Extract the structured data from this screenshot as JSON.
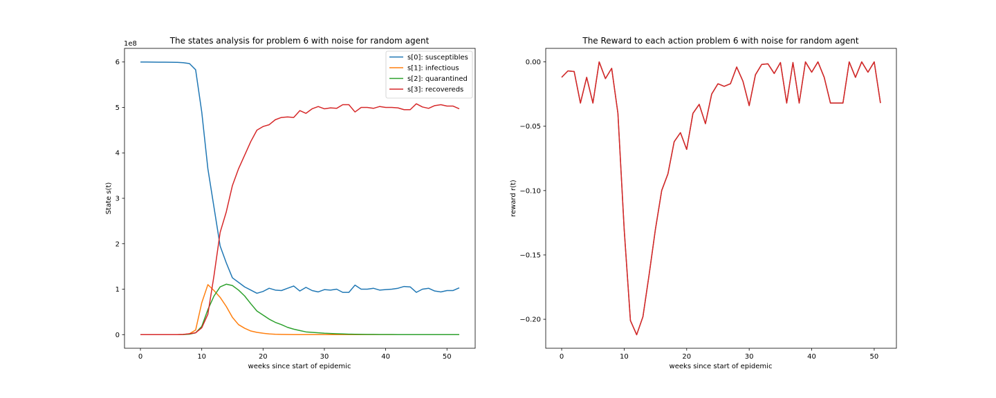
{
  "chart_data": [
    {
      "type": "line",
      "title": "The states analysis for problem 6 with noise for random agent",
      "xlabel": "weeks since start of epidemic",
      "ylabel": "State s(t)",
      "offset_text": "1e8",
      "xlim": [
        -2.6,
        54.6
      ],
      "ylim": [
        -30000000,
        630000000
      ],
      "xticks": [
        0,
        10,
        20,
        30,
        40,
        50
      ],
      "xtick_labels": [
        "0",
        "10",
        "20",
        "30",
        "40",
        "50"
      ],
      "yticks": [
        0,
        100000000,
        200000000,
        300000000,
        400000000,
        500000000,
        600000000
      ],
      "ytick_labels": [
        "0",
        "1",
        "2",
        "3",
        "4",
        "5",
        "6"
      ],
      "grid": false,
      "legend_position": "top-right",
      "x": [
        0,
        1,
        2,
        3,
        4,
        5,
        6,
        7,
        8,
        9,
        10,
        11,
        12,
        13,
        14,
        15,
        16,
        17,
        18,
        19,
        20,
        21,
        22,
        23,
        24,
        25,
        26,
        27,
        28,
        29,
        30,
        31,
        32,
        33,
        34,
        35,
        36,
        37,
        38,
        39,
        40,
        41,
        42,
        43,
        44,
        45,
        46,
        47,
        48,
        49,
        50,
        51,
        52
      ],
      "series": [
        {
          "name": "s[0]: susceptibles",
          "color": "#1f77b4",
          "values": [
            600.0,
            600.0,
            599.8,
            599.6,
            599.5,
            599.4,
            599.2,
            598.5,
            596.5,
            583,
            490,
            365,
            280,
            195,
            158,
            125,
            115,
            105,
            98,
            91,
            95,
            102,
            98,
            97,
            102,
            107,
            96,
            104,
            97,
            94,
            99,
            98,
            100,
            93,
            93,
            109,
            100,
            100,
            102,
            98,
            99,
            100,
            102,
            106,
            105,
            93,
            100,
            102,
            96,
            94,
            97,
            97,
            103
          ]
        },
        {
          "name": "s[1]: infectious",
          "color": "#ff7f0e",
          "values": [
            0,
            0,
            0,
            0,
            0,
            0,
            0,
            0.5,
            2,
            10,
            70,
            110,
            97,
            82,
            62,
            38,
            22,
            14,
            8,
            5,
            3,
            1.5,
            0.8,
            0.4,
            0.2,
            0.1,
            0,
            0,
            0,
            0,
            0,
            0,
            0,
            0,
            0,
            0,
            0,
            0,
            0,
            0,
            0,
            0,
            0,
            0,
            0,
            0,
            0,
            0,
            0,
            0,
            0,
            0,
            0
          ]
        },
        {
          "name": "s[2]: quarantined",
          "color": "#2ca02c",
          "values": [
            0,
            0,
            0,
            0,
            0,
            0,
            0,
            0.2,
            1,
            4,
            18,
            55,
            85,
            105,
            111,
            108,
            98,
            85,
            68,
            52,
            43,
            34,
            27,
            22,
            16,
            12,
            9,
            6,
            5,
            4,
            3,
            2.5,
            2,
            1.5,
            1,
            0.8,
            0.6,
            0.5,
            0.4,
            0.3,
            0.2,
            0.2,
            0.1,
            0.1,
            0.1,
            0,
            0,
            0,
            0,
            0,
            0,
            0,
            0
          ]
        },
        {
          "name": "s[3]: recovereds",
          "color": "#d62728",
          "values": [
            0,
            0,
            0,
            0,
            0,
            0,
            0,
            0.5,
            2,
            4,
            15,
            45,
            130,
            225,
            270,
            328,
            365,
            395,
            425,
            450,
            458,
            462,
            473,
            478,
            479,
            478,
            493,
            487,
            497,
            502,
            497,
            499,
            498,
            506,
            506,
            490,
            500,
            500,
            498,
            502,
            500,
            500,
            499,
            495,
            495,
            508,
            501,
            498,
            504,
            506,
            503,
            503,
            497
          ]
        }
      ],
      "value_unit_multiplier": 1000000
    },
    {
      "type": "line",
      "title": "The Reward to each action problem 6 with noise for random agent",
      "xlabel": "weeks since start of epidemic",
      "ylabel": "reward r(t)",
      "xlim": [
        -2.55,
        53.55
      ],
      "ylim": [
        -0.2225,
        0.0105
      ],
      "xticks": [
        0,
        10,
        20,
        30,
        40,
        50
      ],
      "xtick_labels": [
        "0",
        "10",
        "20",
        "30",
        "40",
        "50"
      ],
      "yticks": [
        0,
        -0.05,
        -0.1,
        -0.15,
        -0.2
      ],
      "ytick_labels": [
        "0.00",
        "−0.05",
        "−0.10",
        "−0.15",
        "−0.20"
      ],
      "grid": false,
      "x": [
        0,
        1,
        2,
        3,
        4,
        5,
        6,
        7,
        8,
        9,
        10,
        11,
        12,
        13,
        14,
        15,
        16,
        17,
        18,
        19,
        20,
        21,
        22,
        23,
        24,
        25,
        26,
        27,
        28,
        29,
        30,
        31,
        32,
        33,
        34,
        35,
        36,
        37,
        38,
        39,
        40,
        41,
        42,
        43,
        44,
        45,
        46,
        47,
        48,
        49,
        50,
        51
      ],
      "series": [
        {
          "color": "#d62728",
          "under_color": "#8c564b",
          "values": [
            -0.012,
            -0.007,
            -0.0075,
            -0.032,
            -0.012,
            -0.032,
            0,
            -0.013,
            -0.005,
            -0.04,
            -0.13,
            -0.201,
            -0.212,
            -0.198,
            -0.165,
            -0.13,
            -0.1,
            -0.087,
            -0.062,
            -0.055,
            -0.068,
            -0.04,
            -0.033,
            -0.048,
            -0.025,
            -0.017,
            -0.019,
            -0.017,
            -0.004,
            -0.015,
            -0.034,
            -0.01,
            -0.002,
            -0.0015,
            -0.009,
            -0.0005,
            -0.032,
            -0.0005,
            -0.032,
            0,
            -0.008,
            0,
            -0.012,
            -0.032,
            -0.032,
            -0.032,
            0,
            -0.012,
            0,
            -0.008,
            0,
            -0.032
          ]
        }
      ]
    }
  ]
}
